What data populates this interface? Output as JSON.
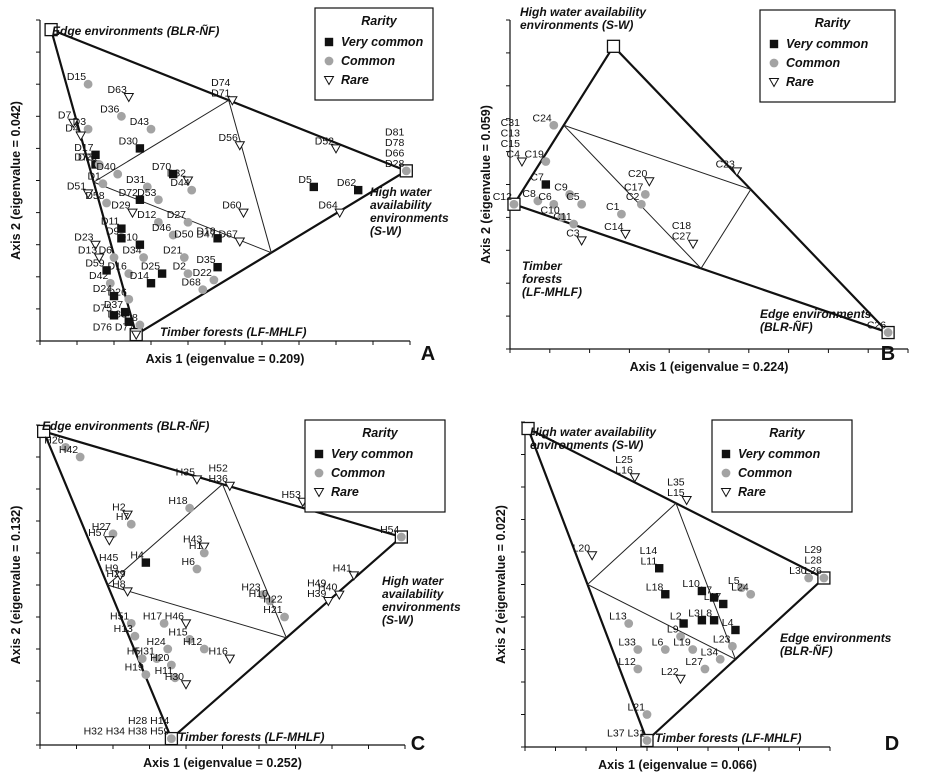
{
  "legend": {
    "title": "Rarity",
    "very_common": "Very common",
    "common": "Common",
    "rare": "Rare"
  },
  "colors": {
    "very_common": "#111111",
    "common": "#a3a3a3",
    "rare": "#ffffff"
  },
  "chart_data": [
    {
      "type": "scatter",
      "panel": "A",
      "xlabel": "Axis 1 (eigenvalue = 0.209)",
      "ylabel": "Axis 2 (eigenvalue = 0.042)",
      "vertices": [
        {
          "label": "Edge environments (BLR-ÑF)",
          "x": 0.03,
          "y": 0.97
        },
        {
          "label": "High water availability environments (S-W)",
          "x": 0.99,
          "y": 0.53
        },
        {
          "label": "Timber forests (LF-MHLF)",
          "x": 0.26,
          "y": 0.02
        }
      ],
      "points": [
        {
          "label": "D15",
          "x": 0.13,
          "y": 0.8,
          "rarity": "common"
        },
        {
          "label": "D63",
          "x": 0.24,
          "y": 0.76,
          "rarity": "rare"
        },
        {
          "label": "D74\nD71",
          "x": 0.52,
          "y": 0.75,
          "rarity": "rare"
        },
        {
          "label": "D36",
          "x": 0.22,
          "y": 0.7,
          "rarity": "common"
        },
        {
          "label": "D43",
          "x": 0.3,
          "y": 0.66,
          "rarity": "common"
        },
        {
          "label": "D56",
          "x": 0.54,
          "y": 0.61,
          "rarity": "rare"
        },
        {
          "label": "D52",
          "x": 0.8,
          "y": 0.6,
          "rarity": "rare"
        },
        {
          "label": "D81\nD78\nD66\nD28",
          "x": 0.99,
          "y": 0.53,
          "rarity": "common"
        },
        {
          "label": "D7",
          "x": 0.09,
          "y": 0.68,
          "rarity": "rare"
        },
        {
          "label": "D3",
          "x": 0.13,
          "y": 0.66,
          "rarity": "common"
        },
        {
          "label": "D4",
          "x": 0.11,
          "y": 0.64,
          "rarity": "rare"
        },
        {
          "label": "D17",
          "x": 0.15,
          "y": 0.58,
          "rarity": "very_common"
        },
        {
          "label": "D30",
          "x": 0.27,
          "y": 0.6,
          "rarity": "very_common"
        },
        {
          "label": "D73",
          "x": 0.15,
          "y": 0.55,
          "rarity": "very_common"
        },
        {
          "label": "D20",
          "x": 0.16,
          "y": 0.55,
          "rarity": "common"
        },
        {
          "label": "D40",
          "x": 0.21,
          "y": 0.52,
          "rarity": "common"
        },
        {
          "label": "D70",
          "x": 0.36,
          "y": 0.52,
          "rarity": "very_common"
        },
        {
          "label": "D32",
          "x": 0.4,
          "y": 0.5,
          "rarity": "rare"
        },
        {
          "label": "D5",
          "x": 0.74,
          "y": 0.48,
          "rarity": "very_common"
        },
        {
          "label": "D62",
          "x": 0.86,
          "y": 0.47,
          "rarity": "very_common"
        },
        {
          "label": "D1",
          "x": 0.17,
          "y": 0.49,
          "rarity": "common"
        },
        {
          "label": "D31",
          "x": 0.29,
          "y": 0.48,
          "rarity": "common"
        },
        {
          "label": "D44",
          "x": 0.41,
          "y": 0.47,
          "rarity": "common"
        },
        {
          "label": "D51",
          "x": 0.13,
          "y": 0.46,
          "rarity": "rare"
        },
        {
          "label": "D72",
          "x": 0.27,
          "y": 0.44,
          "rarity": "very_common"
        },
        {
          "label": "D53",
          "x": 0.32,
          "y": 0.44,
          "rarity": "common"
        },
        {
          "label": "D58",
          "x": 0.18,
          "y": 0.43,
          "rarity": "common"
        },
        {
          "label": "D29",
          "x": 0.25,
          "y": 0.4,
          "rarity": "rare"
        },
        {
          "label": "D60",
          "x": 0.55,
          "y": 0.4,
          "rarity": "rare"
        },
        {
          "label": "D64",
          "x": 0.81,
          "y": 0.4,
          "rarity": "rare"
        },
        {
          "label": "D12",
          "x": 0.32,
          "y": 0.37,
          "rarity": "common"
        },
        {
          "label": "D27",
          "x": 0.4,
          "y": 0.37,
          "rarity": "common"
        },
        {
          "label": "D11",
          "x": 0.22,
          "y": 0.35,
          "rarity": "very_common"
        },
        {
          "label": "D9",
          "x": 0.22,
          "y": 0.32,
          "rarity": "very_common"
        },
        {
          "label": "D46",
          "x": 0.36,
          "y": 0.33,
          "rarity": "common"
        },
        {
          "label": "D18",
          "x": 0.48,
          "y": 0.32,
          "rarity": "very_common"
        },
        {
          "label": "D50 D47 D67",
          "x": 0.54,
          "y": 0.31,
          "rarity": "rare"
        },
        {
          "label": "D23",
          "x": 0.15,
          "y": 0.3,
          "rarity": "rare"
        },
        {
          "label": "D10",
          "x": 0.27,
          "y": 0.3,
          "rarity": "very_common"
        },
        {
          "label": "D13",
          "x": 0.16,
          "y": 0.26,
          "rarity": "rare"
        },
        {
          "label": "D6",
          "x": 0.2,
          "y": 0.26,
          "rarity": "common"
        },
        {
          "label": "D34",
          "x": 0.28,
          "y": 0.26,
          "rarity": "common"
        },
        {
          "label": "D21",
          "x": 0.39,
          "y": 0.26,
          "rarity": "common"
        },
        {
          "label": "D35",
          "x": 0.48,
          "y": 0.23,
          "rarity": "very_common"
        },
        {
          "label": "D59",
          "x": 0.18,
          "y": 0.22,
          "rarity": "very_common"
        },
        {
          "label": "D16",
          "x": 0.24,
          "y": 0.21,
          "rarity": "common"
        },
        {
          "label": "D25",
          "x": 0.33,
          "y": 0.21,
          "rarity": "very_common"
        },
        {
          "label": "D2",
          "x": 0.4,
          "y": 0.21,
          "rarity": "common"
        },
        {
          "label": "D22",
          "x": 0.47,
          "y": 0.19,
          "rarity": "common"
        },
        {
          "label": "D42",
          "x": 0.19,
          "y": 0.18,
          "rarity": "common"
        },
        {
          "label": "D14",
          "x": 0.3,
          "y": 0.18,
          "rarity": "very_common"
        },
        {
          "label": "D68",
          "x": 0.44,
          "y": 0.16,
          "rarity": "common"
        },
        {
          "label": "D24",
          "x": 0.2,
          "y": 0.14,
          "rarity": "very_common"
        },
        {
          "label": "D26",
          "x": 0.24,
          "y": 0.13,
          "rarity": "common"
        },
        {
          "label": "D37",
          "x": 0.23,
          "y": 0.09,
          "rarity": "very_common"
        },
        {
          "label": "D75",
          "x": 0.2,
          "y": 0.08,
          "rarity": "very_common"
        },
        {
          "label": "D33",
          "x": 0.24,
          "y": 0.06,
          "rarity": "very_common"
        },
        {
          "label": "D8",
          "x": 0.27,
          "y": 0.05,
          "rarity": "common"
        },
        {
          "label": "D76 D77",
          "x": 0.26,
          "y": 0.02,
          "rarity": "rare"
        }
      ]
    },
    {
      "type": "scatter",
      "panel": "B",
      "xlabel": "Axis 1 (eigenvalue = 0.224)",
      "ylabel": "Axis 2 (eigenvalue = 0.059)",
      "vertices": [
        {
          "label": "High water availability environments (S-W)",
          "x": 0.26,
          "y": 0.92
        },
        {
          "label": "Timber forests (LF-MHLF)",
          "x": 0.01,
          "y": 0.44
        },
        {
          "label": "Edge environments (BLR-ÑF)",
          "x": 0.95,
          "y": 0.05
        }
      ],
      "points": [
        {
          "label": "C24",
          "x": 0.11,
          "y": 0.68,
          "rarity": "common"
        },
        {
          "label": "C31\nC13\nC15\nC4",
          "x": 0.03,
          "y": 0.57,
          "rarity": "rare"
        },
        {
          "label": "C19",
          "x": 0.09,
          "y": 0.57,
          "rarity": "common"
        },
        {
          "label": "C7",
          "x": 0.09,
          "y": 0.5,
          "rarity": "very_common"
        },
        {
          "label": "C20",
          "x": 0.35,
          "y": 0.51,
          "rarity": "rare"
        },
        {
          "label": "C23",
          "x": 0.57,
          "y": 0.54,
          "rarity": "rare"
        },
        {
          "label": "C9",
          "x": 0.15,
          "y": 0.47,
          "rarity": "common"
        },
        {
          "label": "C17",
          "x": 0.34,
          "y": 0.47,
          "rarity": "common"
        },
        {
          "label": "C8",
          "x": 0.07,
          "y": 0.45,
          "rarity": "common"
        },
        {
          "label": "C6",
          "x": 0.11,
          "y": 0.44,
          "rarity": "common"
        },
        {
          "label": "C5",
          "x": 0.18,
          "y": 0.44,
          "rarity": "common"
        },
        {
          "label": "C2",
          "x": 0.33,
          "y": 0.44,
          "rarity": "common"
        },
        {
          "label": "C12",
          "x": 0.01,
          "y": 0.44,
          "rarity": "common"
        },
        {
          "label": "C1",
          "x": 0.28,
          "y": 0.41,
          "rarity": "common"
        },
        {
          "label": "C10",
          "x": 0.13,
          "y": 0.4,
          "rarity": "common"
        },
        {
          "label": "C11",
          "x": 0.16,
          "y": 0.38,
          "rarity": "common"
        },
        {
          "label": "C14",
          "x": 0.29,
          "y": 0.35,
          "rarity": "rare"
        },
        {
          "label": "C3",
          "x": 0.18,
          "y": 0.33,
          "rarity": "rare"
        },
        {
          "label": "C18\nC27",
          "x": 0.46,
          "y": 0.32,
          "rarity": "rare"
        },
        {
          "label": "C26",
          "x": 0.95,
          "y": 0.05,
          "rarity": "common"
        }
      ]
    },
    {
      "type": "scatter",
      "panel": "C",
      "xlabel": "Axis 1 (eigenvalue = 0.252)",
      "ylabel": "Axis 2 (eigenvalue = 0.132)",
      "vertices": [
        {
          "label": "Edge environments (BLR-ÑF)",
          "x": 0.01,
          "y": 0.98
        },
        {
          "label": "High water availability environments (S-W)",
          "x": 0.99,
          "y": 0.65
        },
        {
          "label": "Timber forests (LF-MHLF)",
          "x": 0.36,
          "y": 0.02
        }
      ],
      "points": [
        {
          "label": "H26",
          "x": 0.07,
          "y": 0.93,
          "rarity": "common"
        },
        {
          "label": "H42",
          "x": 0.11,
          "y": 0.9,
          "rarity": "common"
        },
        {
          "label": "H35",
          "x": 0.43,
          "y": 0.83,
          "rarity": "rare"
        },
        {
          "label": "H52\nH36",
          "x": 0.52,
          "y": 0.81,
          "rarity": "rare"
        },
        {
          "label": "H53",
          "x": 0.72,
          "y": 0.76,
          "rarity": "rare"
        },
        {
          "label": "H18",
          "x": 0.41,
          "y": 0.74,
          "rarity": "common"
        },
        {
          "label": "H2",
          "x": 0.24,
          "y": 0.72,
          "rarity": "rare"
        },
        {
          "label": "H7",
          "x": 0.25,
          "y": 0.69,
          "rarity": "common"
        },
        {
          "label": "H27",
          "x": 0.2,
          "y": 0.66,
          "rarity": "common"
        },
        {
          "label": "H57",
          "x": 0.19,
          "y": 0.64,
          "rarity": "rare"
        },
        {
          "label": "H54",
          "x": 0.99,
          "y": 0.65,
          "rarity": "common"
        },
        {
          "label": "H43",
          "x": 0.45,
          "y": 0.62,
          "rarity": "rare"
        },
        {
          "label": "H1",
          "x": 0.45,
          "y": 0.6,
          "rarity": "common"
        },
        {
          "label": "H4",
          "x": 0.29,
          "y": 0.57,
          "rarity": "very_common"
        },
        {
          "label": "H6",
          "x": 0.43,
          "y": 0.55,
          "rarity": "common"
        },
        {
          "label": "H41",
          "x": 0.86,
          "y": 0.53,
          "rarity": "rare"
        },
        {
          "label": "H45\nH9",
          "x": 0.22,
          "y": 0.53,
          "rarity": "rare"
        },
        {
          "label": "H29\nH8",
          "x": 0.24,
          "y": 0.48,
          "rarity": "rare"
        },
        {
          "label": "H23",
          "x": 0.61,
          "y": 0.47,
          "rarity": "common"
        },
        {
          "label": "H10",
          "x": 0.63,
          "y": 0.45,
          "rarity": "common"
        },
        {
          "label": "H40",
          "x": 0.82,
          "y": 0.47,
          "rarity": "rare"
        },
        {
          "label": "H49\nH39",
          "x": 0.79,
          "y": 0.45,
          "rarity": "rare"
        },
        {
          "label": "H22\nH21",
          "x": 0.67,
          "y": 0.4,
          "rarity": "common"
        },
        {
          "label": "H51",
          "x": 0.25,
          "y": 0.38,
          "rarity": "common"
        },
        {
          "label": "H17",
          "x": 0.34,
          "y": 0.38,
          "rarity": "common"
        },
        {
          "label": "H46",
          "x": 0.4,
          "y": 0.38,
          "rarity": "rare"
        },
        {
          "label": "H13",
          "x": 0.26,
          "y": 0.34,
          "rarity": "common"
        },
        {
          "label": "H15",
          "x": 0.41,
          "y": 0.33,
          "rarity": "common"
        },
        {
          "label": "H24",
          "x": 0.35,
          "y": 0.3,
          "rarity": "common"
        },
        {
          "label": "H12",
          "x": 0.45,
          "y": 0.3,
          "rarity": "common"
        },
        {
          "label": "H16",
          "x": 0.52,
          "y": 0.27,
          "rarity": "rare"
        },
        {
          "label": "H5",
          "x": 0.28,
          "y": 0.27,
          "rarity": "common"
        },
        {
          "label": "H31",
          "x": 0.32,
          "y": 0.27,
          "rarity": "common"
        },
        {
          "label": "H20",
          "x": 0.36,
          "y": 0.25,
          "rarity": "common"
        },
        {
          "label": "H19",
          "x": 0.29,
          "y": 0.22,
          "rarity": "common"
        },
        {
          "label": "H11",
          "x": 0.37,
          "y": 0.21,
          "rarity": "common"
        },
        {
          "label": "H30",
          "x": 0.4,
          "y": 0.19,
          "rarity": "rare"
        },
        {
          "label": "H28 H14\nH32 H34 H38 H59",
          "x": 0.36,
          "y": 0.02,
          "rarity": "common"
        }
      ]
    },
    {
      "type": "scatter",
      "panel": "D",
      "xlabel": "Axis 1 (eigenvalue = 0.066)",
      "ylabel": "Axis 2 (eigenvalue = 0.022)",
      "vertices": [
        {
          "label": "High water availability environments (S-W)",
          "x": 0.01,
          "y": 0.98
        },
        {
          "label": "Edge environments (BLR-ÑF)",
          "x": 0.98,
          "y": 0.52
        },
        {
          "label": "Timber forests (LF-MHLF)",
          "x": 0.4,
          "y": 0.02
        }
      ],
      "points": [
        {
          "label": "L25\nL16",
          "x": 0.36,
          "y": 0.83,
          "rarity": "rare"
        },
        {
          "label": "L35\nL15",
          "x": 0.53,
          "y": 0.76,
          "rarity": "rare"
        },
        {
          "label": "L20",
          "x": 0.22,
          "y": 0.59,
          "rarity": "rare"
        },
        {
          "label": "L14\nL11",
          "x": 0.44,
          "y": 0.55,
          "rarity": "very_common"
        },
        {
          "label": "L29\nL28\nL26",
          "x": 0.98,
          "y": 0.52,
          "rarity": "common"
        },
        {
          "label": "L30",
          "x": 0.93,
          "y": 0.52,
          "rarity": "common"
        },
        {
          "label": "L18",
          "x": 0.46,
          "y": 0.47,
          "rarity": "very_common"
        },
        {
          "label": "L10",
          "x": 0.58,
          "y": 0.48,
          "rarity": "very_common"
        },
        {
          "label": "L7",
          "x": 0.62,
          "y": 0.46,
          "rarity": "very_common"
        },
        {
          "label": "L5",
          "x": 0.71,
          "y": 0.49,
          "rarity": "common"
        },
        {
          "label": "L24",
          "x": 0.74,
          "y": 0.47,
          "rarity": "common"
        },
        {
          "label": "L17",
          "x": 0.65,
          "y": 0.44,
          "rarity": "very_common"
        },
        {
          "label": "L13",
          "x": 0.34,
          "y": 0.38,
          "rarity": "common"
        },
        {
          "label": "L2",
          "x": 0.52,
          "y": 0.38,
          "rarity": "very_common"
        },
        {
          "label": "L3",
          "x": 0.58,
          "y": 0.39,
          "rarity": "very_common"
        },
        {
          "label": "L8",
          "x": 0.62,
          "y": 0.39,
          "rarity": "very_common"
        },
        {
          "label": "L4",
          "x": 0.69,
          "y": 0.36,
          "rarity": "very_common"
        },
        {
          "label": "L9",
          "x": 0.51,
          "y": 0.34,
          "rarity": "common"
        },
        {
          "label": "L33",
          "x": 0.37,
          "y": 0.3,
          "rarity": "common"
        },
        {
          "label": "L6",
          "x": 0.46,
          "y": 0.3,
          "rarity": "common"
        },
        {
          "label": "L19",
          "x": 0.55,
          "y": 0.3,
          "rarity": "common"
        },
        {
          "label": "L23",
          "x": 0.68,
          "y": 0.31,
          "rarity": "common"
        },
        {
          "label": "L34",
          "x": 0.64,
          "y": 0.27,
          "rarity": "common"
        },
        {
          "label": "L12",
          "x": 0.37,
          "y": 0.24,
          "rarity": "common"
        },
        {
          "label": "L27",
          "x": 0.59,
          "y": 0.24,
          "rarity": "common"
        },
        {
          "label": "L22",
          "x": 0.51,
          "y": 0.21,
          "rarity": "rare"
        },
        {
          "label": "L21",
          "x": 0.4,
          "y": 0.1,
          "rarity": "common"
        },
        {
          "label": "L37 L31",
          "x": 0.4,
          "y": 0.02,
          "rarity": "common"
        }
      ]
    }
  ]
}
